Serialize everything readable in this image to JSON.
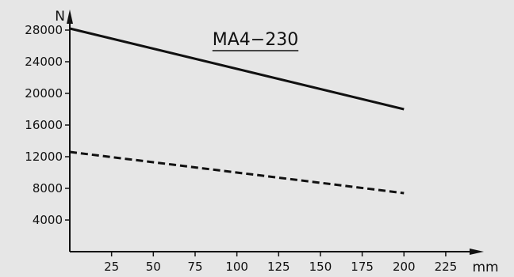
{
  "chart_data": {
    "type": "line",
    "title": "MA4−230",
    "xlabel": "mm",
    "ylabel": "N",
    "xlim": [
      0,
      235
    ],
    "ylim": [
      0,
      31000
    ],
    "grid": false,
    "x_ticks": [
      25,
      50,
      75,
      100,
      125,
      150,
      175,
      200,
      225
    ],
    "y_ticks": [
      4000,
      8000,
      12000,
      16000,
      20000,
      24000,
      28000
    ],
    "series": [
      {
        "style": "solid",
        "color": "#111111",
        "x": [
          0,
          200
        ],
        "y": [
          28200,
          18000
        ]
      },
      {
        "style": "dashed",
        "color": "#111111",
        "x": [
          0,
          200
        ],
        "y": [
          12600,
          7400
        ]
      }
    ]
  }
}
